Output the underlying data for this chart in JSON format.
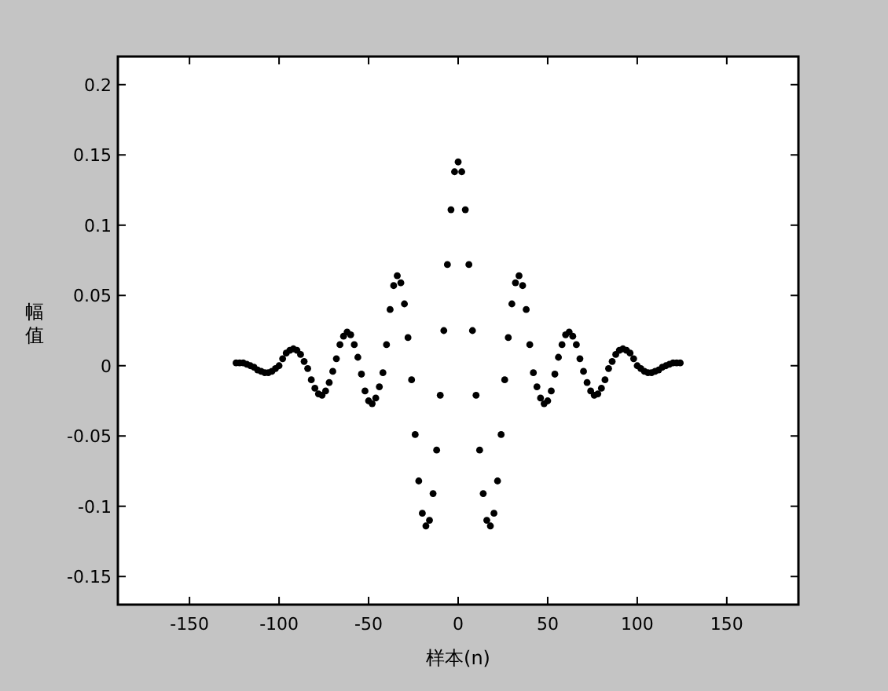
{
  "chart_data": {
    "type": "scatter",
    "xlabel": "样本(n)",
    "ylabel": "幅值",
    "xlim": [
      -190,
      190
    ],
    "ylim": [
      -0.17,
      0.22
    ],
    "xticks": [
      -150,
      -100,
      -50,
      0,
      50,
      100,
      150
    ],
    "yticks": [
      {
        "value": 0.2,
        "label": "0.2"
      },
      {
        "value": 0.15,
        "label": "0.15"
      },
      {
        "value": 0.1,
        "label": "0.1"
      },
      {
        "value": 0.05,
        "label": "0.05"
      },
      0,
      {
        "value": -0.05,
        "label": "-0.05"
      },
      {
        "value": -0.1,
        "label": "-0.1"
      },
      {
        "value": -0.15,
        "label": "-0.15"
      }
    ],
    "grid": false,
    "marker": "circle",
    "series": [
      {
        "color": "#000000",
        "x": [
          -124,
          -122,
          -120,
          -118,
          -116,
          -114,
          -112,
          -110,
          -108,
          -106,
          -104,
          -102,
          -100,
          -98,
          -96,
          -94,
          -92,
          -90,
          -88,
          -86,
          -84,
          -82,
          -80,
          -78,
          -76,
          -74,
          -72,
          -70,
          -68,
          -66,
          -64,
          -62,
          -60,
          -58,
          -56,
          -54,
          -52,
          -50,
          -48,
          -46,
          -44,
          -42,
          -40,
          -38,
          -36,
          -34,
          -32,
          -30,
          -28,
          -26,
          -24,
          -22,
          -20,
          -18,
          -16,
          -14,
          -12,
          -10,
          -8,
          -6,
          -4,
          -2,
          0,
          2,
          4,
          6,
          8,
          10,
          12,
          14,
          16,
          18,
          20,
          22,
          24,
          26,
          28,
          30,
          32,
          34,
          36,
          38,
          40,
          42,
          44,
          46,
          48,
          50,
          52,
          54,
          56,
          58,
          60,
          62,
          64,
          66,
          68,
          70,
          72,
          74,
          76,
          78,
          80,
          82,
          84,
          86,
          88,
          90,
          92,
          94,
          96,
          98,
          100,
          102,
          104,
          106,
          108,
          110,
          112,
          114,
          116,
          118,
          120,
          122,
          124
        ],
        "values": [
          0.002,
          0.002,
          0.002,
          0.001,
          0,
          -0.001,
          -0.003,
          -0.004,
          -0.005,
          -0.005,
          -0.004,
          -0.002,
          0,
          0.005,
          0.009,
          0.011,
          0.012,
          0.011,
          0.008,
          0.003,
          -0.002,
          -0.01,
          -0.016,
          -0.02,
          -0.021,
          -0.018,
          -0.012,
          -0.004,
          0.005,
          0.015,
          0.021,
          0.024,
          0.022,
          0.015,
          0.006,
          -0.006,
          -0.018,
          -0.025,
          -0.027,
          -0.023,
          -0.015,
          -0.005,
          0.015,
          0.04,
          0.057,
          0.064,
          0.059,
          0.044,
          0.02,
          -0.01,
          -0.049,
          -0.082,
          -0.105,
          -0.114,
          -0.11,
          -0.091,
          -0.06,
          -0.021,
          0.025,
          0.072,
          0.111,
          0.138,
          0.145,
          0.138,
          0.111,
          0.072,
          0.025,
          -0.021,
          -0.06,
          -0.091,
          -0.11,
          -0.114,
          -0.105,
          -0.082,
          -0.049,
          -0.01,
          0.02,
          0.044,
          0.059,
          0.064,
          0.057,
          0.04,
          0.015,
          -0.005,
          -0.015,
          -0.023,
          -0.027,
          -0.025,
          -0.018,
          -0.006,
          0.006,
          0.015,
          0.022,
          0.024,
          0.021,
          0.015,
          0.005,
          -0.004,
          -0.012,
          -0.018,
          -0.021,
          -0.02,
          -0.016,
          -0.01,
          -0.002,
          0.003,
          0.008,
          0.011,
          0.012,
          0.011,
          0.009,
          0.005,
          0,
          -0.002,
          -0.004,
          -0.005,
          -0.005,
          -0.004,
          -0.003,
          -0.001,
          0,
          0.001,
          0.002,
          0.002,
          0.002
        ]
      }
    ]
  }
}
